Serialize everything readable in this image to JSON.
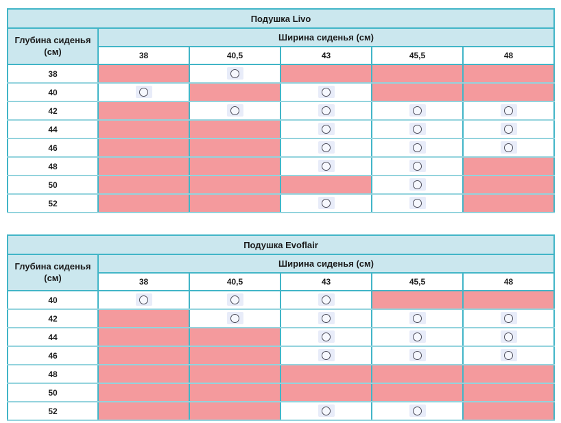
{
  "colors": {
    "header_bg": "#cbe7ee",
    "unavailable_pink": "#f49a9d",
    "border_teal": "#41b5c7",
    "row_divider_teal": "#93d3dd",
    "text": "#1a1a1a",
    "radio_field_bg": "#e8ecf9",
    "radio_ring": "#4b4b59",
    "radio_fill": "#f6f8fe"
  },
  "cell_states_legend": {
    "circle": "radio-circle shown (size combination offered)",
    "pink": "filled pink (size combination not offered)"
  },
  "tables": [
    {
      "title": "Подушка Livo",
      "depth_header": "Глубина сиденья (см)",
      "width_header": "Ширина сиденья (см)",
      "columns": [
        "38",
        "40,5",
        "43",
        "45,5",
        "48"
      ],
      "rows": [
        {
          "label": "38",
          "cells": [
            "pink",
            "circle",
            "pink",
            "pink",
            "pink"
          ]
        },
        {
          "label": "40",
          "cells": [
            "circle",
            "pink",
            "circle",
            "pink",
            "pink"
          ]
        },
        {
          "label": "42",
          "cells": [
            "pink",
            "circle",
            "circle",
            "circle",
            "circle"
          ]
        },
        {
          "label": "44",
          "cells": [
            "pink",
            "pink",
            "circle",
            "circle",
            "circle"
          ]
        },
        {
          "label": "46",
          "cells": [
            "pink",
            "pink",
            "circle",
            "circle",
            "circle"
          ]
        },
        {
          "label": "48",
          "cells": [
            "pink",
            "pink",
            "circle",
            "circle",
            "pink"
          ]
        },
        {
          "label": "50",
          "cells": [
            "pink",
            "pink",
            "pink",
            "circle",
            "pink"
          ]
        },
        {
          "label": "52",
          "cells": [
            "pink",
            "pink",
            "circle",
            "circle",
            "pink"
          ]
        }
      ]
    },
    {
      "title": "Подушка Evoflair",
      "depth_header": "Глубина сиденья (см)",
      "width_header": "Ширина сиденья (см)",
      "columns": [
        "38",
        "40,5",
        "43",
        "45,5",
        "48"
      ],
      "rows": [
        {
          "label": "40",
          "cells": [
            "circle",
            "circle",
            "circle",
            "pink",
            "pink"
          ]
        },
        {
          "label": "42",
          "cells": [
            "pink",
            "circle",
            "circle",
            "circle",
            "circle"
          ]
        },
        {
          "label": "44",
          "cells": [
            "pink",
            "pink",
            "circle",
            "circle",
            "circle"
          ]
        },
        {
          "label": "46",
          "cells": [
            "pink",
            "pink",
            "circle",
            "circle",
            "circle"
          ]
        },
        {
          "label": "48",
          "cells": [
            "pink",
            "pink",
            "pink",
            "pink",
            "pink"
          ]
        },
        {
          "label": "50",
          "cells": [
            "pink",
            "pink",
            "pink",
            "pink",
            "pink"
          ]
        },
        {
          "label": "52",
          "cells": [
            "pink",
            "pink",
            "circle",
            "circle",
            "pink"
          ]
        }
      ]
    }
  ]
}
